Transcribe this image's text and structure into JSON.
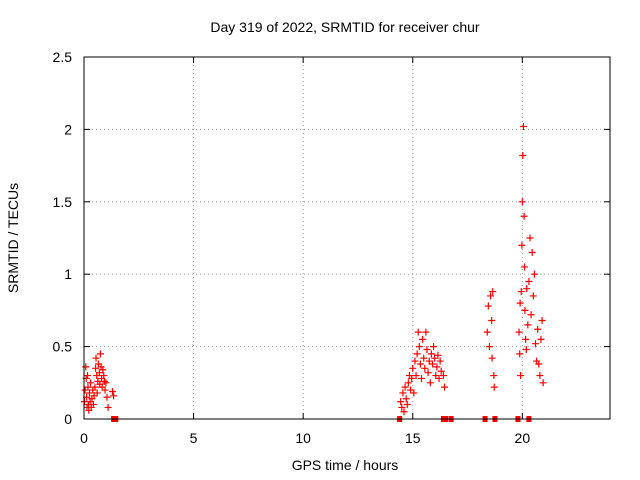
{
  "chart_data": {
    "type": "scatter",
    "title": "Day 319 of 2022, SRMTID for receiver chur",
    "xlabel": "GPS time / hours",
    "ylabel": "SRMTID / TECUs",
    "xlim": [
      0,
      24
    ],
    "ylim": [
      0,
      2.5
    ],
    "xticks": [
      0,
      5,
      10,
      15,
      20
    ],
    "xtick_labels": [
      "0",
      "5",
      "10",
      "15",
      "20"
    ],
    "yticks": [
      0,
      0.5,
      1,
      1.5,
      2,
      2.5
    ],
    "ytick_labels": [
      "0",
      "0.5",
      "1",
      "1.5",
      "2",
      "2.5"
    ],
    "grid": true,
    "marker": "+",
    "color": "#ff0000",
    "series": [
      {
        "name": "SRMTID",
        "points": [
          [
            0.02,
            0.12
          ],
          [
            0.05,
            0.2
          ],
          [
            0.08,
            0.36
          ],
          [
            0.1,
            0.28
          ],
          [
            0.12,
            0.15
          ],
          [
            0.14,
            0.08
          ],
          [
            0.16,
            0.3
          ],
          [
            0.18,
            0.22
          ],
          [
            0.2,
            0.1
          ],
          [
            0.22,
            0.06
          ],
          [
            0.25,
            0.18
          ],
          [
            0.28,
            0.12
          ],
          [
            0.3,
            0.25
          ],
          [
            0.33,
            0.08
          ],
          [
            0.36,
            0.14
          ],
          [
            0.4,
            0.2
          ],
          [
            0.43,
            0.1
          ],
          [
            0.46,
            0.16
          ],
          [
            0.5,
            0.22
          ],
          [
            0.53,
            0.35
          ],
          [
            0.55,
            0.42
          ],
          [
            0.58,
            0.3
          ],
          [
            0.6,
            0.18
          ],
          [
            0.63,
            0.26
          ],
          [
            0.66,
            0.38
          ],
          [
            0.7,
            0.32
          ],
          [
            0.72,
            0.24
          ],
          [
            0.75,
            0.45
          ],
          [
            0.78,
            0.36
          ],
          [
            0.8,
            0.28
          ],
          [
            0.83,
            0.22
          ],
          [
            0.86,
            0.34
          ],
          [
            0.9,
            0.3
          ],
          [
            0.93,
            0.26
          ],
          [
            0.96,
            0.2
          ],
          [
            1.0,
            0.25
          ],
          [
            1.05,
            0.15
          ],
          [
            1.1,
            0.08
          ],
          [
            1.3,
            0.19
          ],
          [
            1.35,
            0.16
          ],
          [
            14.45,
            0.12
          ],
          [
            14.5,
            0.08
          ],
          [
            14.55,
            0.18
          ],
          [
            14.6,
            0.05
          ],
          [
            14.65,
            0.22
          ],
          [
            14.7,
            0.14
          ],
          [
            14.75,
            0.1
          ],
          [
            14.8,
            0.25
          ],
          [
            14.85,
            0.3
          ],
          [
            14.9,
            0.2
          ],
          [
            14.95,
            0.28
          ],
          [
            15.0,
            0.35
          ],
          [
            15.05,
            0.18
          ],
          [
            15.1,
            0.4
          ],
          [
            15.15,
            0.3
          ],
          [
            15.2,
            0.45
          ],
          [
            15.25,
            0.6
          ],
          [
            15.3,
            0.5
          ],
          [
            15.35,
            0.38
          ],
          [
            15.4,
            0.28
          ],
          [
            15.45,
            0.55
          ],
          [
            15.5,
            0.42
          ],
          [
            15.55,
            0.35
          ],
          [
            15.6,
            0.6
          ],
          [
            15.65,
            0.48
          ],
          [
            15.7,
            0.32
          ],
          [
            15.75,
            0.4
          ],
          [
            15.8,
            0.25
          ],
          [
            15.85,
            0.45
          ],
          [
            15.9,
            0.38
          ],
          [
            15.95,
            0.5
          ],
          [
            16.0,
            0.42
          ],
          [
            16.05,
            0.3
          ],
          [
            16.1,
            0.36
          ],
          [
            16.15,
            0.44
          ],
          [
            16.2,
            0.28
          ],
          [
            16.25,
            0.4
          ],
          [
            16.3,
            0.33
          ],
          [
            16.4,
            0.3
          ],
          [
            16.45,
            0.22
          ],
          [
            18.4,
            0.6
          ],
          [
            18.45,
            0.78
          ],
          [
            18.5,
            0.5
          ],
          [
            18.55,
            0.85
          ],
          [
            18.6,
            0.68
          ],
          [
            18.62,
            0.42
          ],
          [
            18.65,
            0.88
          ],
          [
            18.7,
            0.3
          ],
          [
            18.72,
            0.22
          ],
          [
            19.85,
            0.6
          ],
          [
            19.88,
            0.45
          ],
          [
            19.9,
            0.8
          ],
          [
            19.92,
            0.3
          ],
          [
            19.95,
            0.88
          ],
          [
            19.98,
            1.2
          ],
          [
            20.0,
            1.5
          ],
          [
            20.02,
            1.82
          ],
          [
            20.05,
            2.02
          ],
          [
            20.08,
            1.4
          ],
          [
            20.1,
            1.05
          ],
          [
            20.12,
            0.75
          ],
          [
            20.15,
            0.55
          ],
          [
            20.18,
            0.48
          ],
          [
            20.2,
            0.9
          ],
          [
            20.25,
            0.65
          ],
          [
            20.3,
            0.95
          ],
          [
            20.35,
            1.25
          ],
          [
            20.4,
            0.72
          ],
          [
            20.45,
            1.15
          ],
          [
            20.5,
            0.85
          ],
          [
            20.55,
            1.0
          ],
          [
            20.6,
            0.52
          ],
          [
            20.65,
            0.4
          ],
          [
            20.7,
            0.62
          ],
          [
            20.75,
            0.38
          ],
          [
            20.8,
            0.3
          ],
          [
            20.85,
            0.55
          ],
          [
            20.9,
            0.68
          ],
          [
            20.95,
            0.25
          ]
        ],
        "zero_points": [
          1.35,
          1.45,
          14.4,
          16.4,
          16.5,
          16.75,
          18.3,
          18.75,
          19.8,
          20.3
        ]
      }
    ]
  }
}
